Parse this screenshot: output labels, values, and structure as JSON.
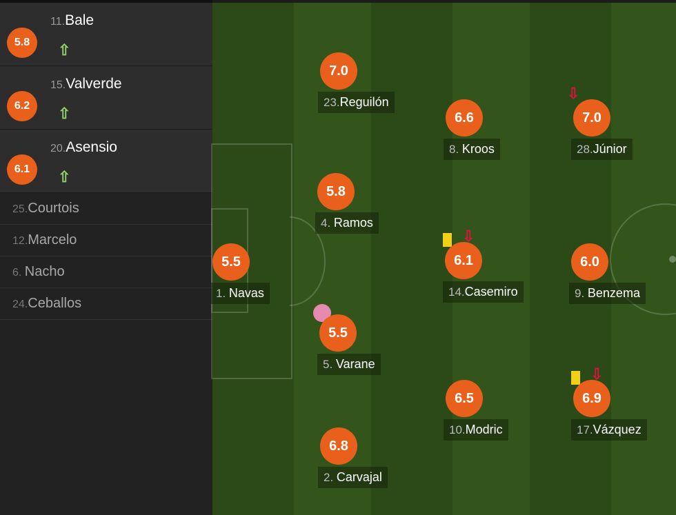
{
  "subs": [
    {
      "num": "11.",
      "name": "Bale",
      "rating": "5.8",
      "icon": "sub-in-arrow-icon"
    },
    {
      "num": "15.",
      "name": "Valverde",
      "rating": "6.2",
      "icon": "sub-in-arrow-icon"
    },
    {
      "num": "20.",
      "name": "Asensio",
      "rating": "6.1",
      "icon": "sub-in-arrow-icon"
    }
  ],
  "bench": [
    {
      "num": "25.",
      "name": "Courtois"
    },
    {
      "num": "12.",
      "name": "Marcelo"
    },
    {
      "num": "6. ",
      "name": "Nacho"
    },
    {
      "num": "24.",
      "name": "Ceballos"
    }
  ],
  "players": [
    {
      "num": "1. ",
      "name": "Navas",
      "rating": "5.5"
    },
    {
      "num": "23.",
      "name": "Reguilón",
      "rating": "7.0"
    },
    {
      "num": "4. ",
      "name": "Ramos",
      "rating": "5.8"
    },
    {
      "num": "5. ",
      "name": "Varane",
      "rating": "5.5",
      "own_goal": true
    },
    {
      "num": "2. ",
      "name": "Carvajal",
      "rating": "6.8"
    },
    {
      "num": "8. ",
      "name": "Kroos",
      "rating": "6.6"
    },
    {
      "num": "14.",
      "name": "Casemiro",
      "rating": "6.1",
      "yellow_card": true,
      "subbed_off": true
    },
    {
      "num": "10.",
      "name": "Modric",
      "rating": "6.5"
    },
    {
      "num": "28.",
      "name": "Júnior",
      "rating": "7.0",
      "subbed_off": true
    },
    {
      "num": "9. ",
      "name": "Benzema",
      "rating": "6.0"
    },
    {
      "num": "17.",
      "name": "Vázquez",
      "rating": "6.9",
      "yellow_card": true,
      "subbed_off": true
    }
  ],
  "colors": {
    "rating": "#e8601c",
    "sub_in": "#8fd16a",
    "sub_off": "#d8153a",
    "yellow": "#f2d018"
  }
}
